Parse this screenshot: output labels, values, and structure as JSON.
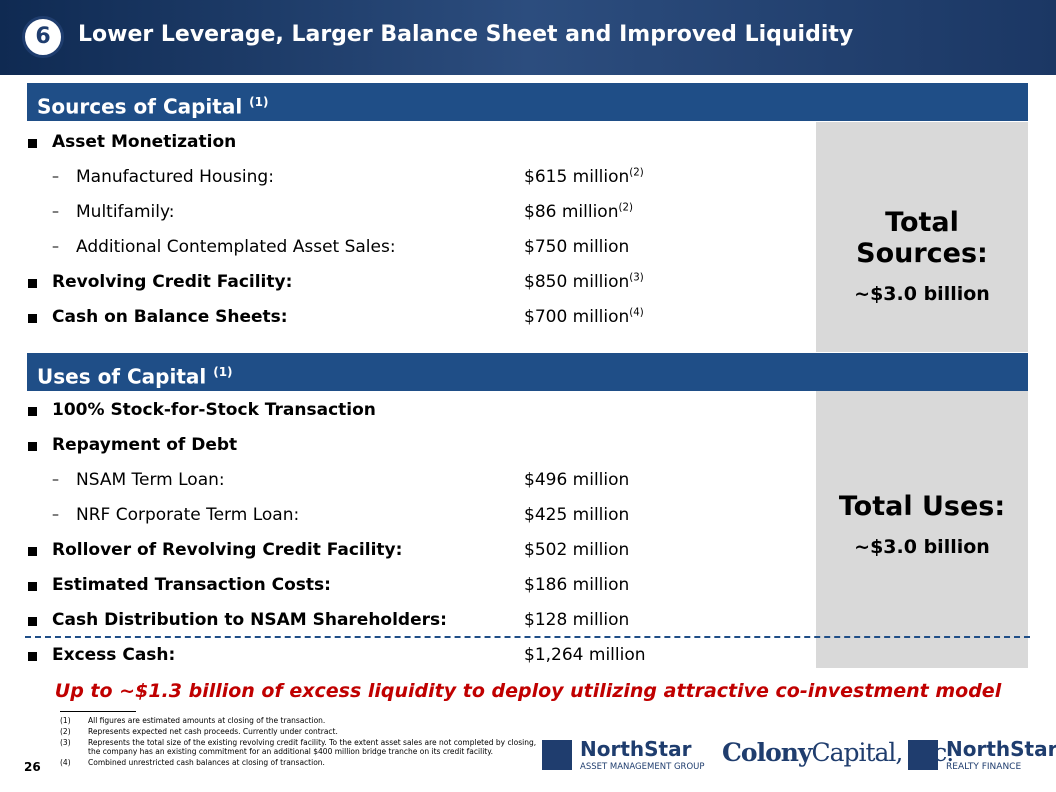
{
  "header": {
    "number": "6",
    "title": "Lower Leverage, Larger Balance Sheet and Improved Liquidity"
  },
  "sources": {
    "heading": "Sources of Capital",
    "heading_note": "(1)",
    "rows": [
      {
        "label": "Asset Monetization",
        "items": [
          {
            "label": "Manufactured Housing:",
            "value": "$615 million",
            "note": "(2)"
          },
          {
            "label": "Multifamily:",
            "value": "$86 million",
            "note": "(2)"
          },
          {
            "label": "Additional Contemplated Asset Sales:",
            "value": "$750 million"
          }
        ]
      },
      {
        "label": "Revolving Credit Facility:",
        "value": "$850 million",
        "note": "(3)"
      },
      {
        "label": "Cash on Balance Sheets:",
        "value": "$700 million",
        "note": "(4)"
      }
    ],
    "total_label": "Total Sources:",
    "total_value": "~$3.0 billion"
  },
  "uses": {
    "heading": "Uses of Capital",
    "heading_note": "(1)",
    "rows": [
      {
        "label": "100% Stock-for-Stock Transaction"
      },
      {
        "label": "Repayment of Debt",
        "items": [
          {
            "label": "NSAM Term Loan:",
            "value": "$496 million"
          },
          {
            "label": "NRF Corporate Term Loan:",
            "value": "$425 million"
          }
        ]
      },
      {
        "label": "Rollover of Revolving Credit Facility:",
        "value": "$502 million"
      },
      {
        "label": "Estimated Transaction Costs:",
        "value": "$186 million"
      },
      {
        "label": "Cash Distribution to NSAM Shareholders:",
        "value": "$128 million"
      },
      {
        "label": "Excess Cash:",
        "value": "$1,264 million"
      }
    ],
    "total_label": "Total Uses:",
    "total_value": "~$3.0 billion"
  },
  "callout": "Up to ~$1.3 billion of excess liquidity to deploy utilizing attractive co-investment model",
  "footnotes": [
    {
      "mark": "(1)",
      "text": "All figures are estimated amounts at closing of the transaction."
    },
    {
      "mark": "(2)",
      "text": "Represents expected net cash proceeds. Currently under contract."
    },
    {
      "mark": "(3)",
      "text": "Represents the total size of the existing revolving credit facility. To the extent asset sales are not completed by closing, the company has an existing commitment for an additional $400 million bridge tranche on its credit facility."
    },
    {
      "mark": "(4)",
      "text": "Combined unrestricted cash balances at closing of transaction."
    }
  ],
  "page_number": "26",
  "logos": {
    "nsam_name": "NorthStar",
    "nsam_sub": "ASSET MANAGEMENT GROUP",
    "colony_a": "Colony",
    "colony_b": "Capital, Inc.",
    "nrf_name": "NorthStar",
    "nrf_sub": "REALTY FINANCE"
  }
}
